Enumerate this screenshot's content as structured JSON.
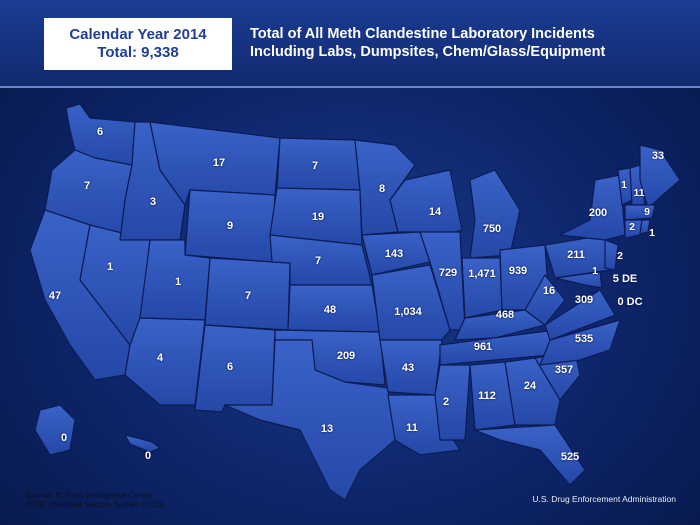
{
  "header": {
    "year_label": "Calendar Year 2014",
    "total_label": "Total: 9,338",
    "title_line1": "Total of All Meth Clandestine Laboratory Incidents",
    "title_line2": "Including Labs, Dumpsites, Chem/Glass/Equipment"
  },
  "colors": {
    "state_fill": "#2d52b8",
    "state_stroke": "#0b1c55",
    "background": "#0d2468",
    "title_box": "#ffffff",
    "title_box_text": "#1f3f95"
  },
  "state_counts": {
    "WA": "6",
    "OR": "7",
    "CA": "47",
    "NV": "1",
    "ID": "3",
    "MT": "17",
    "WY": "9",
    "UT": "1",
    "AZ": "4",
    "CO": "7",
    "NM": "6",
    "ND": "7",
    "SD": "19",
    "NE": "7",
    "KS": "48",
    "OK": "209",
    "TX": "13",
    "MN": "8",
    "IA": "143",
    "MO": "1,034",
    "AR": "43",
    "LA": "11",
    "WI": "14",
    "IL": "729",
    "MS": "2",
    "MI": "750",
    "IN": "1,471",
    "KY": "468",
    "TN": "961",
    "AL": "112",
    "OH": "939",
    "GA": "24",
    "FL": "525",
    "SC": "357",
    "NC": "535",
    "VA": "309",
    "WV": "16",
    "PA": "211",
    "NY": "200",
    "VT": "1",
    "NH": "11",
    "ME": "33",
    "MA": "9",
    "CT": "2",
    "RI": "1",
    "NJ": "2",
    "MD": "1",
    "DE": "5 DE",
    "DC": "0 DC",
    "AK": "0",
    "HI": "0"
  },
  "footer": {
    "source_line1": "Source: El Paso Intelligence Center",
    "source_line2": "(EPIC)/National Seizure System (NSS)",
    "credit": "U.S. Drug Enforcement Administration"
  }
}
